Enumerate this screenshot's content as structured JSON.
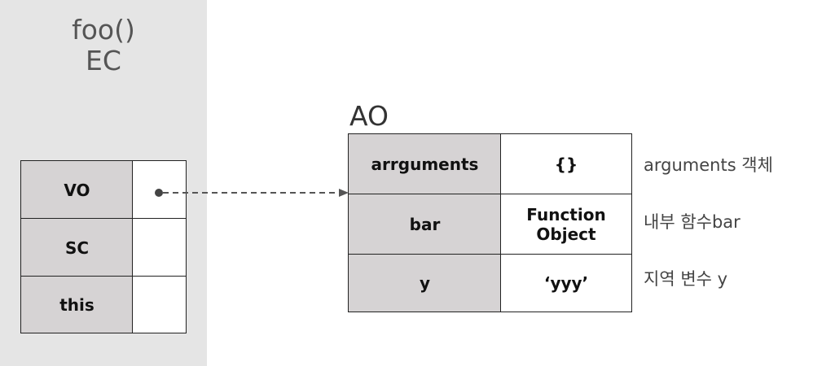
{
  "ec": {
    "title_line1": "foo()",
    "title_line2": "EC",
    "rows": [
      {
        "key": "VO",
        "value": ""
      },
      {
        "key": "SC",
        "value": ""
      },
      {
        "key": "this",
        "value": ""
      }
    ]
  },
  "ao": {
    "label": "AO",
    "rows": [
      {
        "key": "arrguments",
        "value": "{}",
        "note": "arguments 객체"
      },
      {
        "key": "bar",
        "value_line1": "Function",
        "value_line2": "Object",
        "note": "내부 함수bar"
      },
      {
        "key": "y",
        "value": "‘yyy’",
        "note": "지역 변수 y"
      }
    ]
  },
  "colors": {
    "panel_bg": "#e5e5e5",
    "key_cell_bg": "#d6d3d4",
    "arrow": "#555555"
  }
}
